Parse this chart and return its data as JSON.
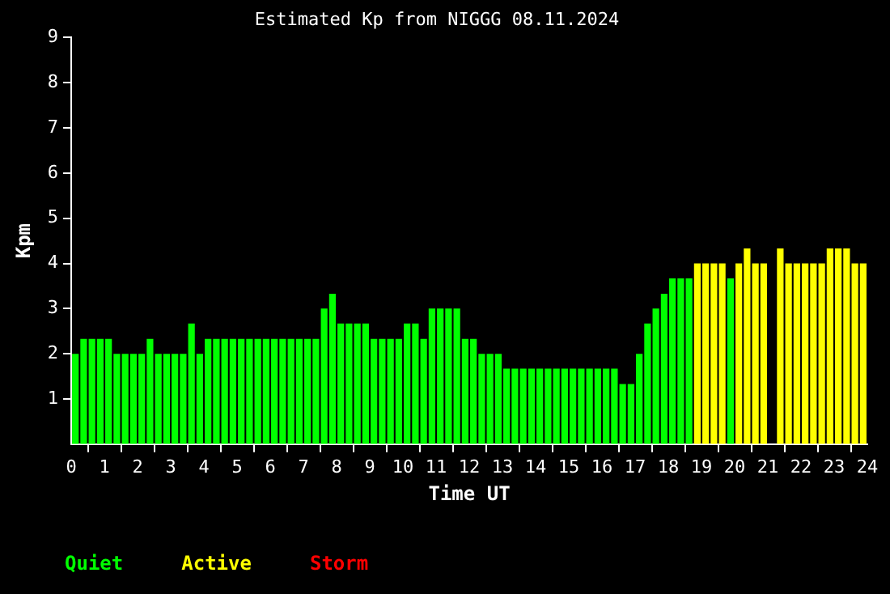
{
  "chart_data": {
    "type": "bar",
    "title": "Estimated Kp from NIGGG 08.11.2024",
    "xlabel": "Time UT",
    "ylabel": "Kpm",
    "x": [
      0.125,
      0.375,
      0.625,
      0.875,
      1.125,
      1.375,
      1.625,
      1.875,
      2.125,
      2.375,
      2.625,
      2.875,
      3.125,
      3.375,
      3.625,
      3.875,
      4.125,
      4.375,
      4.625,
      4.875,
      5.125,
      5.375,
      5.625,
      5.875,
      6.125,
      6.375,
      6.625,
      6.875,
      7.125,
      7.375,
      7.625,
      7.875,
      8.125,
      8.375,
      8.625,
      8.875,
      9.125,
      9.375,
      9.625,
      9.875,
      10.125,
      10.375,
      10.625,
      10.875,
      11.125,
      11.375,
      11.625,
      11.875,
      12.125,
      12.375,
      12.625,
      12.875,
      13.125,
      13.375,
      13.625,
      13.875,
      14.125,
      14.375,
      14.625,
      14.875,
      15.125,
      15.375,
      15.625,
      15.875,
      16.125,
      16.375,
      16.625,
      16.875,
      17.125,
      17.375,
      17.625,
      17.875,
      18.125,
      18.375,
      18.625,
      18.875,
      19.125,
      19.375,
      19.625,
      19.875,
      20.125,
      20.375,
      20.625,
      20.875,
      21.125,
      21.375,
      21.625,
      21.875,
      22.125,
      22.375,
      22.625,
      22.875,
      23.125,
      23.375,
      23.625,
      23.875
    ],
    "series": [
      {
        "name": "Quiet",
        "color": "#00ff00",
        "values": [
          2,
          2.33,
          2.33,
          2.33,
          2.33,
          2,
          2,
          2,
          2,
          2.33,
          2,
          2,
          2,
          2,
          2.67,
          2,
          2.33,
          2.33,
          2.33,
          2.33,
          2.33,
          2.33,
          2.33,
          2.33,
          2.33,
          2.33,
          2.33,
          2.33,
          2.33,
          2.33,
          3,
          3.33,
          2.67,
          2.67,
          2.67,
          2.67,
          2.33,
          2.33,
          2.33,
          2.33,
          2.67,
          2.67,
          2.33,
          3,
          3,
          3,
          3,
          2.33,
          2.33,
          2,
          2,
          2,
          1.67,
          1.67,
          1.67,
          1.67,
          1.67,
          1.67,
          1.67,
          1.67,
          1.67,
          1.67,
          1.67,
          1.67,
          1.67,
          1.67,
          1.33,
          1.33,
          2,
          2.67,
          3,
          3.33,
          3.67,
          3.67,
          3.67,
          null,
          null,
          null,
          null,
          3.67,
          null,
          null,
          null,
          null,
          null,
          null,
          null,
          null,
          null,
          null,
          null,
          null,
          null,
          null,
          null,
          null
        ]
      },
      {
        "name": "Active",
        "color": "#ffff00",
        "values": [
          null,
          null,
          null,
          null,
          null,
          null,
          null,
          null,
          null,
          null,
          null,
          null,
          null,
          null,
          null,
          null,
          null,
          null,
          null,
          null,
          null,
          null,
          null,
          null,
          null,
          null,
          null,
          null,
          null,
          null,
          null,
          null,
          null,
          null,
          null,
          null,
          null,
          null,
          null,
          null,
          null,
          null,
          null,
          null,
          null,
          null,
          null,
          null,
          null,
          null,
          null,
          null,
          null,
          null,
          null,
          null,
          null,
          null,
          null,
          null,
          null,
          null,
          null,
          null,
          null,
          null,
          null,
          null,
          null,
          null,
          null,
          null,
          null,
          null,
          null,
          4,
          4,
          4,
          4,
          null,
          4,
          4.33,
          4,
          4,
          null,
          4.33,
          4,
          4,
          4,
          4,
          4,
          4.33,
          4.33,
          4.33,
          4,
          4
        ]
      }
    ],
    "annotations": [
      "Storm"
    ],
    "xlim": [
      0,
      24
    ],
    "xticks": [
      0,
      1,
      2,
      3,
      4,
      5,
      6,
      7,
      8,
      9,
      10,
      11,
      12,
      13,
      14,
      15,
      16,
      17,
      18,
      19,
      20,
      21,
      22,
      23,
      24
    ],
    "ylim": [
      0,
      9
    ],
    "yticks": [
      1,
      2,
      3,
      4,
      5,
      6,
      7,
      8,
      9
    ],
    "grid": false,
    "legend": "bottom left"
  }
}
